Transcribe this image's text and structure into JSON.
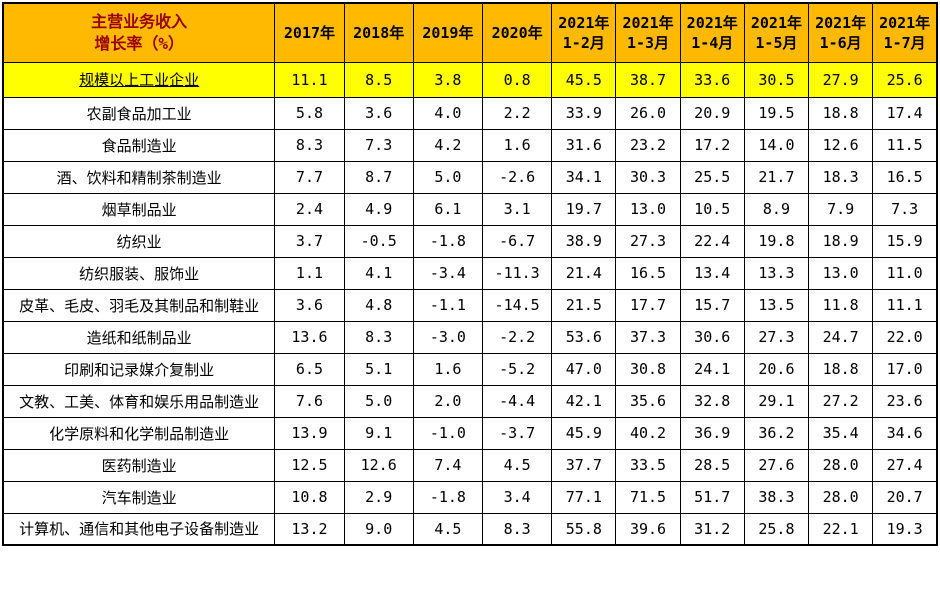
{
  "colors": {
    "header_bg": "#FFB900",
    "header_title_text": "#990000",
    "header_year_text": "#000000",
    "highlight_row_bg": "#FFFF00",
    "body_row_bg": "#FFFFFF",
    "border": "#000000"
  },
  "chart_data": {
    "type": "table",
    "title": "主营业务收入增长率（%）",
    "corner_header": "主营业务收入\n增长率（%）",
    "columns": [
      "2017年",
      "2018年",
      "2019年",
      "2020年",
      "2021年\n1-2月",
      "2021年\n1-3月",
      "2021年\n1-4月",
      "2021年\n1-5月",
      "2021年\n1-6月",
      "2021年\n1-7月"
    ],
    "rows": [
      {
        "label": "规模以上工业企业",
        "highlight": true,
        "values": [
          "11.1",
          "8.5",
          "3.8",
          "0.8",
          "45.5",
          "38.7",
          "33.6",
          "30.5",
          "27.9",
          "25.6"
        ]
      },
      {
        "label": "农副食品加工业",
        "highlight": false,
        "values": [
          "5.8",
          "3.6",
          "4.0",
          "2.2",
          "33.9",
          "26.0",
          "20.9",
          "19.5",
          "18.8",
          "17.4"
        ]
      },
      {
        "label": "食品制造业",
        "highlight": false,
        "values": [
          "8.3",
          "7.3",
          "4.2",
          "1.6",
          "31.6",
          "23.2",
          "17.2",
          "14.0",
          "12.6",
          "11.5"
        ]
      },
      {
        "label": "酒、饮料和精制茶制造业",
        "highlight": false,
        "values": [
          "7.7",
          "8.7",
          "5.0",
          "-2.6",
          "34.1",
          "30.3",
          "25.5",
          "21.7",
          "18.3",
          "16.5"
        ]
      },
      {
        "label": "烟草制品业",
        "highlight": false,
        "values": [
          "2.4",
          "4.9",
          "6.1",
          "3.1",
          "19.7",
          "13.0",
          "10.5",
          "8.9",
          "7.9",
          "7.3"
        ]
      },
      {
        "label": "纺织业",
        "highlight": false,
        "values": [
          "3.7",
          "-0.5",
          "-1.8",
          "-6.7",
          "38.9",
          "27.3",
          "22.4",
          "19.8",
          "18.9",
          "15.9"
        ]
      },
      {
        "label": "纺织服装、服饰业",
        "highlight": false,
        "values": [
          "1.1",
          "4.1",
          "-3.4",
          "-11.3",
          "21.4",
          "16.5",
          "13.4",
          "13.3",
          "13.0",
          "11.0"
        ]
      },
      {
        "label": "皮革、毛皮、羽毛及其制品和制鞋业",
        "highlight": false,
        "values": [
          "3.6",
          "4.8",
          "-1.1",
          "-14.5",
          "21.5",
          "17.7",
          "15.7",
          "13.5",
          "11.8",
          "11.1"
        ]
      },
      {
        "label": "造纸和纸制品业",
        "highlight": false,
        "values": [
          "13.6",
          "8.3",
          "-3.0",
          "-2.2",
          "53.6",
          "37.3",
          "30.6",
          "27.3",
          "24.7",
          "22.0"
        ]
      },
      {
        "label": "印刷和记录媒介复制业",
        "highlight": false,
        "values": [
          "6.5",
          "5.1",
          "1.6",
          "-5.2",
          "47.0",
          "30.8",
          "24.1",
          "20.6",
          "18.8",
          "17.0"
        ]
      },
      {
        "label": "文教、工美、体育和娱乐用品制造业",
        "highlight": false,
        "values": [
          "7.6",
          "5.0",
          "2.0",
          "-4.4",
          "42.1",
          "35.6",
          "32.8",
          "29.1",
          "27.2",
          "23.6"
        ]
      },
      {
        "label": "化学原料和化学制品制造业",
        "highlight": false,
        "values": [
          "13.9",
          "9.1",
          "-1.0",
          "-3.7",
          "45.9",
          "40.2",
          "36.9",
          "36.2",
          "35.4",
          "34.6"
        ]
      },
      {
        "label": "医药制造业",
        "highlight": false,
        "values": [
          "12.5",
          "12.6",
          "7.4",
          "4.5",
          "37.7",
          "33.5",
          "28.5",
          "27.6",
          "28.0",
          "27.4"
        ]
      },
      {
        "label": "汽车制造业",
        "highlight": false,
        "values": [
          "10.8",
          "2.9",
          "-1.8",
          "3.4",
          "77.1",
          "71.5",
          "51.7",
          "38.3",
          "28.0",
          "20.7"
        ]
      },
      {
        "label": "计算机、通信和其他电子设备制造业",
        "highlight": false,
        "values": [
          "13.2",
          "9.0",
          "4.5",
          "8.3",
          "55.8",
          "39.6",
          "31.2",
          "25.8",
          "22.1",
          "19.3"
        ]
      }
    ]
  }
}
